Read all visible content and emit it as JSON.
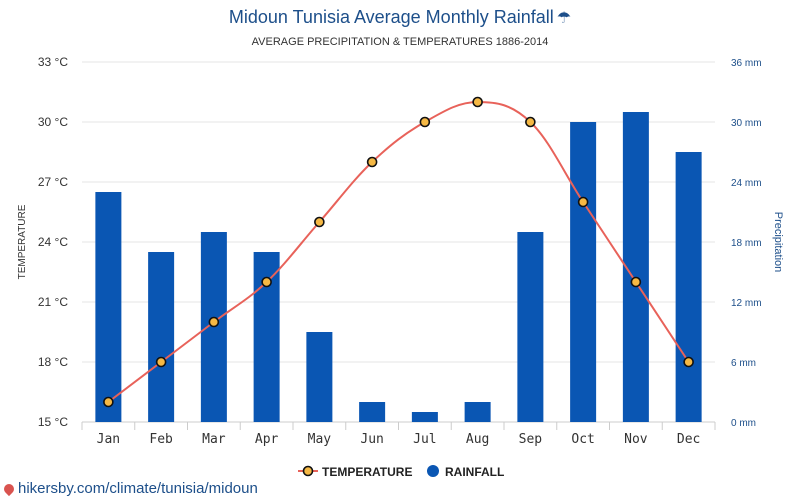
{
  "chart_data": {
    "type": "bar",
    "title": "Midoun Tunisia Average Monthly Rainfall",
    "title_icon": "umbrella-icon",
    "subtitle": "AVERAGE PRECIPITATION & TEMPERATURES 1886-2014",
    "categories": [
      "Jan",
      "Feb",
      "Mar",
      "Apr",
      "May",
      "Jun",
      "Jul",
      "Aug",
      "Sep",
      "Oct",
      "Nov",
      "Dec"
    ],
    "series": [
      {
        "name": "TEMPERATURE",
        "type": "line",
        "axis": "left",
        "color": "#e8625a",
        "marker_fill": "#f5b844",
        "values": [
          16,
          18,
          20,
          22,
          25,
          28,
          30,
          31,
          30,
          26,
          22,
          18
        ]
      },
      {
        "name": "RAINFALL",
        "type": "bar",
        "axis": "right",
        "color": "#0a56b3",
        "values": [
          23,
          17,
          19,
          17,
          9,
          2,
          1,
          2,
          19,
          30,
          31,
          27
        ]
      }
    ],
    "y_left": {
      "label": "TEMPERATURE",
      "range": [
        15,
        33
      ],
      "ticks": [
        15,
        18,
        21,
        24,
        27,
        30,
        33
      ],
      "tick_labels": [
        "15 °C",
        "18 °C",
        "21 °C",
        "24 °C",
        "27 °C",
        "30 °C",
        "33 °C"
      ]
    },
    "y_right": {
      "label": "Precipitation",
      "range": [
        0,
        36
      ],
      "ticks": [
        0,
        6,
        12,
        18,
        24,
        30,
        36
      ],
      "tick_labels": [
        "0 mm",
        "6 mm",
        "12 mm",
        "18 mm",
        "24 mm",
        "30 mm",
        "36 mm"
      ]
    },
    "grid": true,
    "legend": "bottom-center"
  },
  "footer": {
    "link_text": "hikersby.com/climate/tunisia/midoun",
    "pin_icon": "map-pin-icon"
  }
}
